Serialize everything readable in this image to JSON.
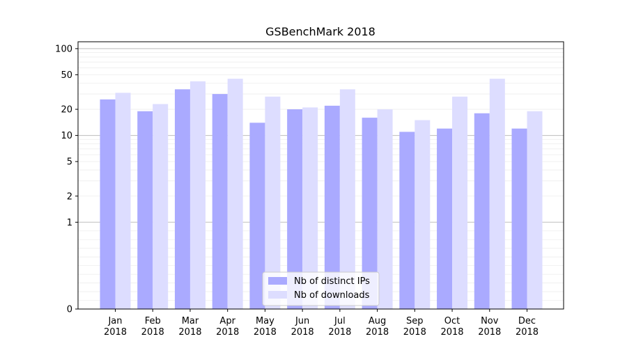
{
  "chart_data": {
    "type": "bar",
    "title": "GSBenchMark 2018",
    "xlabel": "",
    "ylabel": "",
    "yscale": "symlog",
    "ylim": [
      0,
      120
    ],
    "yticks": [
      "0",
      "1",
      "2",
      "5",
      "10",
      "20",
      "50",
      "100"
    ],
    "categories": [
      [
        "Jan",
        "2018"
      ],
      [
        "Feb",
        "2018"
      ],
      [
        "Mar",
        "2018"
      ],
      [
        "Apr",
        "2018"
      ],
      [
        "May",
        "2018"
      ],
      [
        "Jun",
        "2018"
      ],
      [
        "Jul",
        "2018"
      ],
      [
        "Aug",
        "2018"
      ],
      [
        "Sep",
        "2018"
      ],
      [
        "Oct",
        "2018"
      ],
      [
        "Nov",
        "2018"
      ],
      [
        "Dec",
        "2018"
      ]
    ],
    "series": [
      {
        "name": "Nb of distinct IPs",
        "color": "#aaaaff",
        "values": [
          26,
          19,
          34,
          30,
          14,
          20,
          22,
          16,
          11,
          12,
          18,
          12
        ]
      },
      {
        "name": "Nb of downloads",
        "color": "#ddddff",
        "values": [
          31,
          23,
          42,
          45,
          28,
          21,
          34,
          20,
          15,
          28,
          45,
          19
        ]
      }
    ],
    "grid": true,
    "legend_position": "bottom-center"
  }
}
